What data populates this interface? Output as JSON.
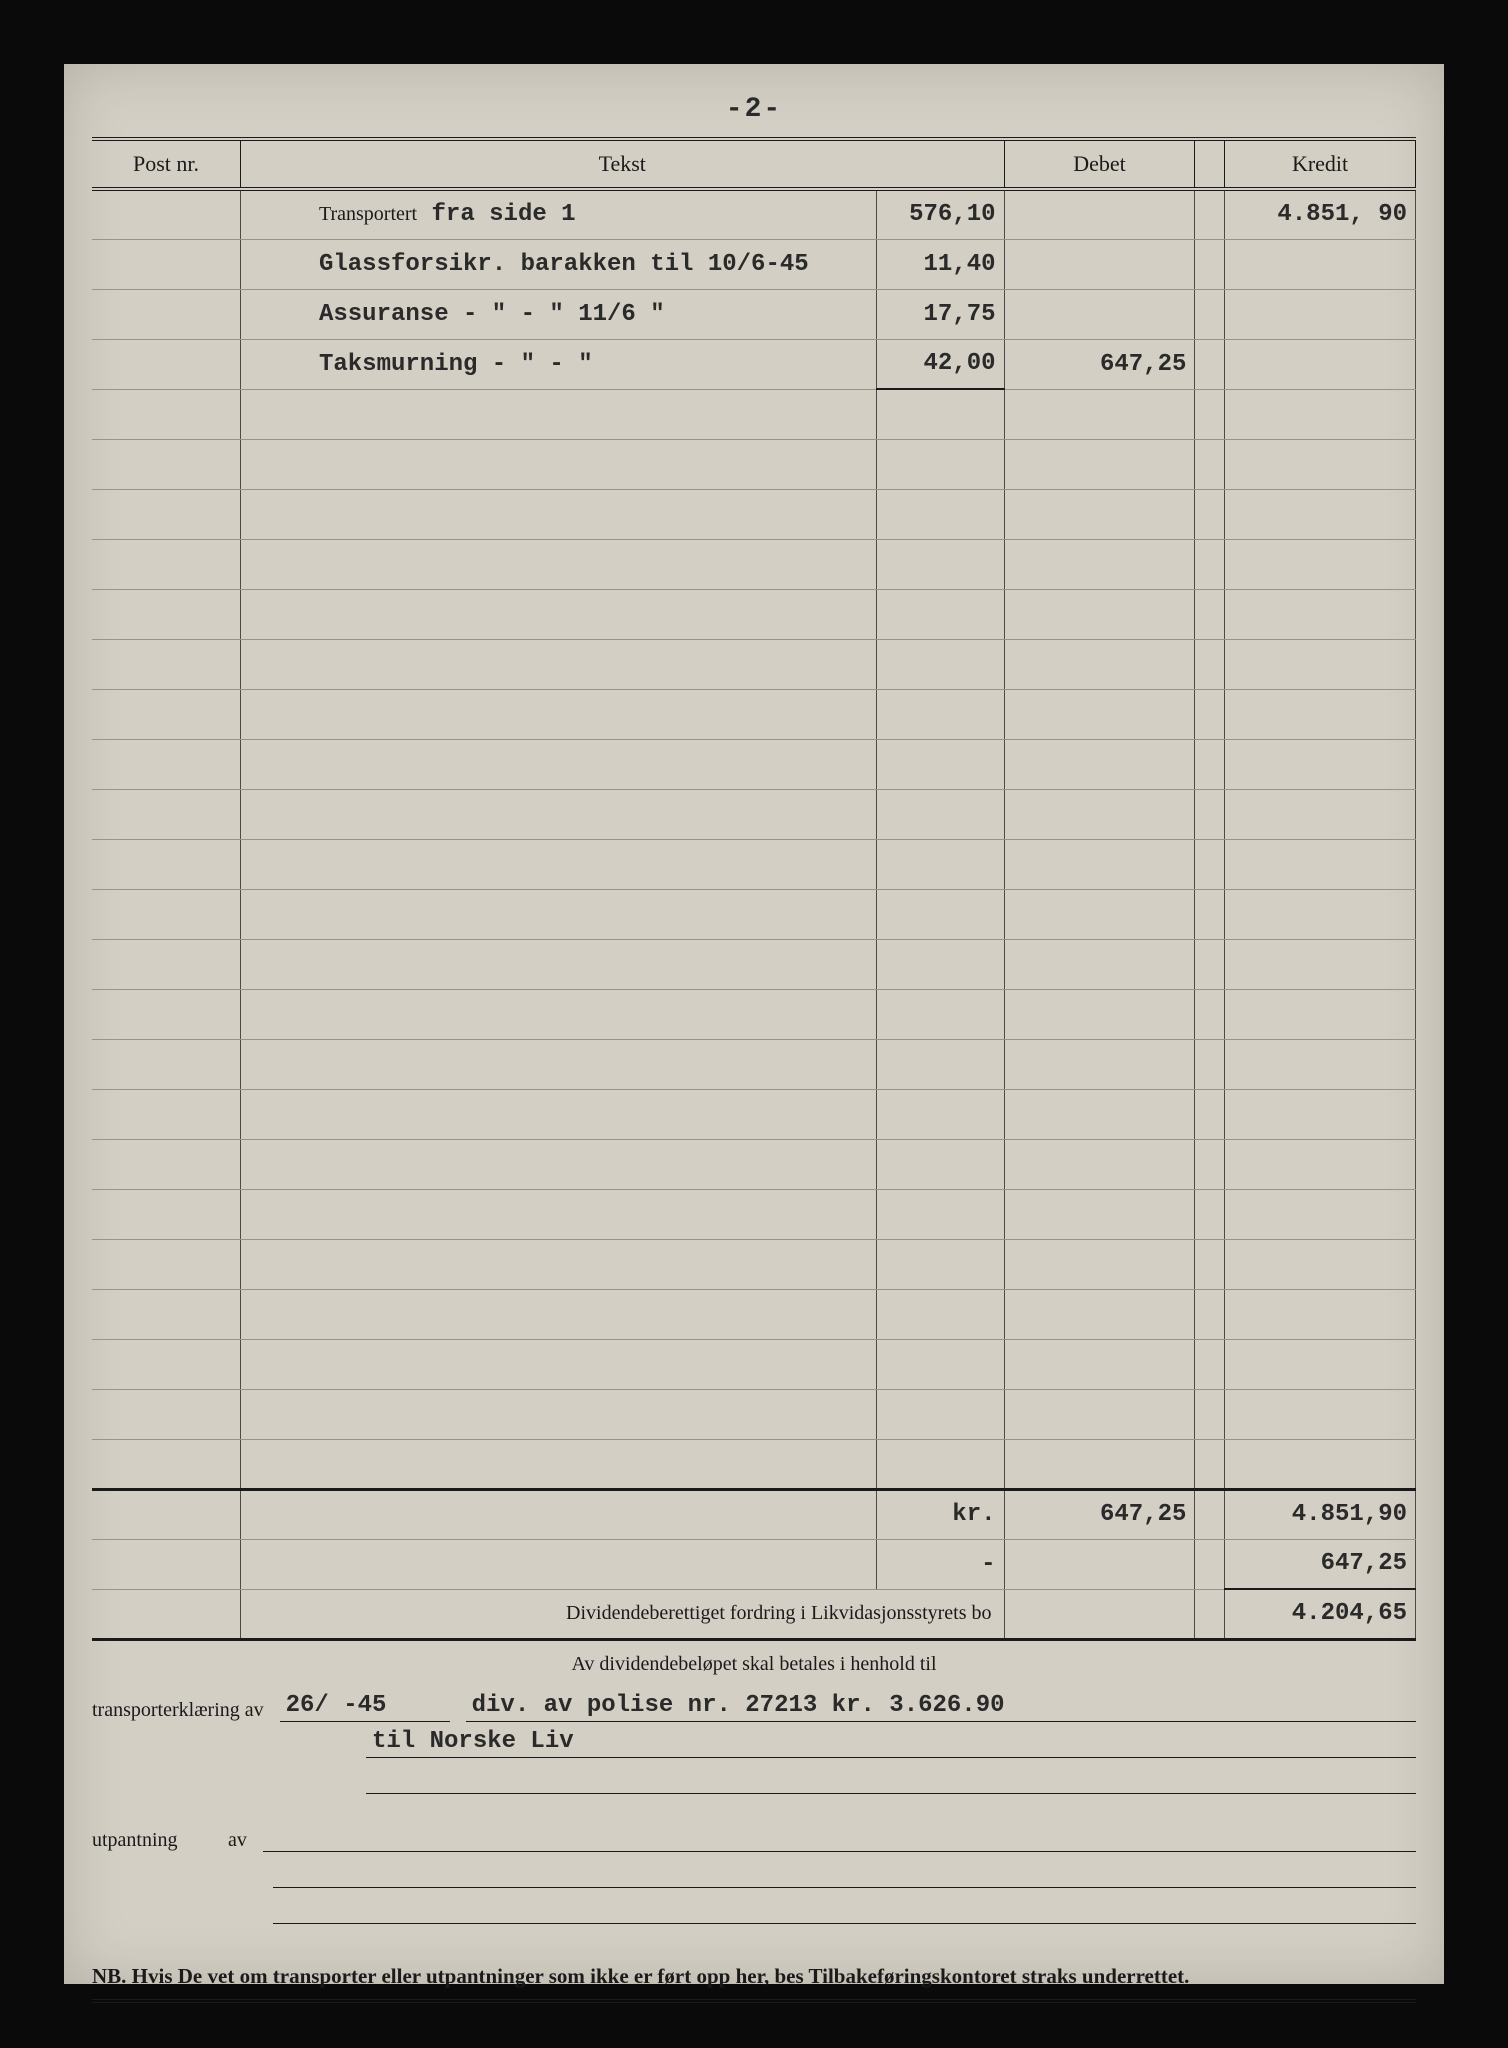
{
  "page_number": "-2-",
  "headers": {
    "post": "Post nr.",
    "tekst": "Tekst",
    "debet": "Debet",
    "kredit": "Kredit"
  },
  "rows": [
    {
      "preprint": "Transportert",
      "typed": "fra side 1",
      "sub": "576,10",
      "debet": "",
      "kredit": "4.851, 90"
    },
    {
      "typed": "Glassforsikr. barakken til 10/6-45",
      "sub": "11,40",
      "debet": "",
      "kredit": ""
    },
    {
      "typed": "Assuranse     - \" -    \"  11/6  \"",
      "sub": "17,75",
      "debet": "",
      "kredit": ""
    },
    {
      "typed": "Taksmurning   - \" -    \"",
      "sub": "42,00",
      "sub_underline": true,
      "debet": "647,25",
      "kredit": ""
    }
  ],
  "empty_row_count": 22,
  "totals": {
    "label_kr": "kr.",
    "debet_total": "647,25",
    "kredit_total": "4.851,90",
    "minus_label": "-",
    "minus_amount": "647,25",
    "dividend_label": "Dividendeberettiget fordring i Likvidasjonsstyrets bo",
    "dividend_amount": "4.204,65"
  },
  "footer": {
    "header": "Av dividendebeløpet skal betales i henhold til",
    "transport_label": "transporterklæring av",
    "transport_date": "26/  -45",
    "transport_text1": "div. av polise nr. 27213 kr. 3.626.90",
    "transport_text2": "til Norske Liv",
    "utpantning_label": "utpantning",
    "av_label": "av",
    "nb": "NB. Hvis De vet om transporter eller utpantninger som ikke er ført opp her, bes Tilbakeføringskontoret straks underrettet."
  },
  "colors": {
    "paper": "#d4cfc4",
    "ink": "#1a1a1a",
    "typed": "#2a2a2a",
    "rule": "#9a9488",
    "frame": "#0a0a0a"
  },
  "fontsizes": {
    "header": 22,
    "body": 24,
    "footer": 20,
    "nb": 21
  }
}
